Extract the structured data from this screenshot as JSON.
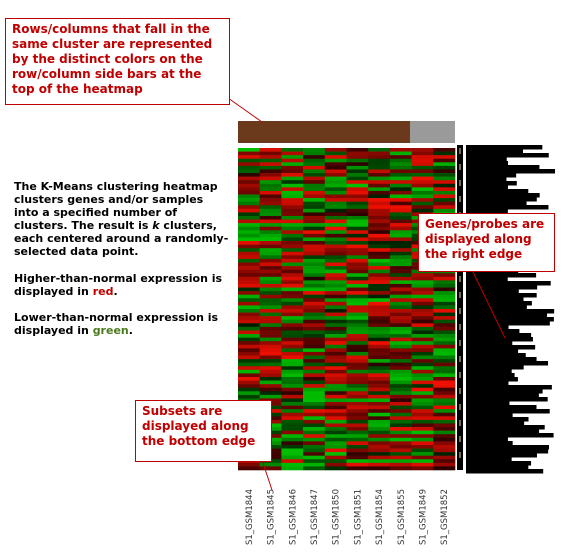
{
  "callouts": {
    "clusters": "Rows/columns that fall in the same cluster are represented by the distinct colors on the row/column side bars at the top of the heatmap",
    "genes": "Genes/probes are displayed along the right edge",
    "subsets": "Subsets are displayed along the bottom edge"
  },
  "description": {
    "intro": [
      "The K-Means clustering heatmap clusters genes and/or samples into a specified number of clusters. The result is ",
      "k",
      " clusters, each centered around a randomly-selected data point."
    ],
    "higher": [
      "Higher-than-normal expression is displayed in ",
      "red",
      "."
    ],
    "lower": [
      "Lower-than-normal expression is displayed in ",
      "green",
      "."
    ]
  },
  "heatmap": {
    "columns": [
      "S1_GSM1844",
      "S1_GSM1845",
      "S1_GSM1846",
      "S1_GSM1847",
      "S1_GSM1850",
      "S1_GSM1851",
      "S1_GSM1854",
      "S1_GSM1855",
      "S1_GSM1849",
      "S1_GSM1852"
    ]
  }
}
